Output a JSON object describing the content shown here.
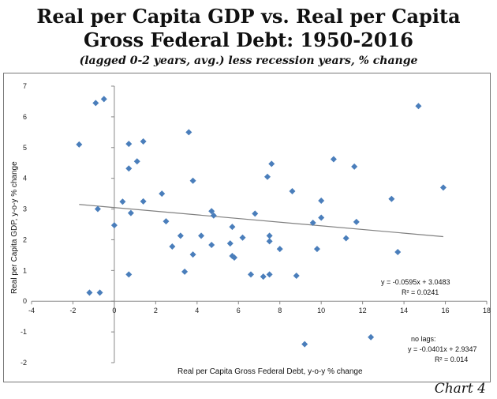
{
  "header": {
    "title_line1": "Real per Capita GDP vs. Real per Capita",
    "title_line2": "Gross Federal Debt: 1950-2016",
    "subtitle": "(lagged 0-2 years, avg.) less recession years, % change"
  },
  "footer": {
    "label": "Chart 4"
  },
  "chart_data": {
    "type": "scatter",
    "title": "Real per Capita GDP vs. Real per Capita Gross Federal Debt: 1950-2016",
    "subtitle": "(lagged 0-2 years, avg.) less recession years, % change",
    "xlabel": "Real per Capita Gross Federal Debt, y-o-y % change",
    "ylabel": "Real per Capita GDP,  y-o-y % change",
    "xlim": [
      -4,
      18
    ],
    "ylim": [
      -2,
      7
    ],
    "xticks": [
      "-4",
      "-2",
      "0",
      "2",
      "4",
      "6",
      "8",
      "10",
      "12",
      "14",
      "16",
      "18"
    ],
    "yticks": [
      "-2",
      "-1",
      "0",
      "1",
      "2",
      "3",
      "4",
      "5",
      "6",
      "7"
    ],
    "grid": false,
    "marker_color": "#4a7ebb",
    "trendline_color": "#808080",
    "series": [
      {
        "marker": "diamond",
        "points": [
          [
            -1.7,
            5.1
          ],
          [
            -0.9,
            6.45
          ],
          [
            -0.5,
            6.58
          ],
          [
            -1.2,
            0.28
          ],
          [
            -0.7,
            0.28
          ],
          [
            -0.8,
            3.0
          ],
          [
            0.0,
            2.47
          ],
          [
            0.4,
            3.24
          ],
          [
            0.7,
            5.12
          ],
          [
            0.7,
            4.32
          ],
          [
            0.8,
            2.87
          ],
          [
            0.7,
            0.87
          ],
          [
            1.1,
            4.55
          ],
          [
            1.4,
            5.2
          ],
          [
            1.4,
            3.25
          ],
          [
            2.3,
            3.5
          ],
          [
            2.5,
            2.6
          ],
          [
            2.8,
            1.78
          ],
          [
            3.2,
            2.13
          ],
          [
            3.4,
            0.96
          ],
          [
            3.6,
            5.5
          ],
          [
            3.8,
            3.92
          ],
          [
            3.8,
            1.52
          ],
          [
            4.2,
            2.13
          ],
          [
            4.7,
            2.93
          ],
          [
            4.8,
            2.79
          ],
          [
            4.7,
            1.83
          ],
          [
            5.6,
            1.88
          ],
          [
            5.7,
            2.42
          ],
          [
            5.7,
            1.47
          ],
          [
            5.8,
            1.42
          ],
          [
            6.2,
            2.07
          ],
          [
            6.6,
            0.87
          ],
          [
            6.8,
            2.85
          ],
          [
            7.2,
            0.8
          ],
          [
            7.4,
            4.05
          ],
          [
            7.6,
            4.47
          ],
          [
            7.5,
            2.13
          ],
          [
            7.5,
            1.95
          ],
          [
            7.5,
            0.87
          ],
          [
            8.0,
            1.7
          ],
          [
            8.6,
            3.58
          ],
          [
            8.8,
            0.83
          ],
          [
            9.6,
            2.55
          ],
          [
            9.8,
            1.7
          ],
          [
            10.0,
            2.72
          ],
          [
            10.0,
            3.27
          ],
          [
            9.2,
            -1.4
          ],
          [
            10.6,
            4.62
          ],
          [
            11.2,
            2.05
          ],
          [
            11.6,
            4.38
          ],
          [
            11.7,
            2.58
          ],
          [
            12.4,
            -1.17
          ],
          [
            13.4,
            3.33
          ],
          [
            13.7,
            1.6
          ],
          [
            14.7,
            6.35
          ],
          [
            15.9,
            3.7
          ]
        ]
      }
    ],
    "trendline": {
      "slope": -0.0595,
      "intercept": 3.0483,
      "x_range": [
        -1.7,
        15.9
      ]
    },
    "annotations": {
      "eq_main": "y = -0.0595x + 3.0483",
      "r2_main": "R² = 0.0241",
      "nolag_label": "no lags:",
      "eq_nolag": "y = -0.0401x + 2.9347",
      "r2_nolag": "R² = 0.014"
    }
  }
}
